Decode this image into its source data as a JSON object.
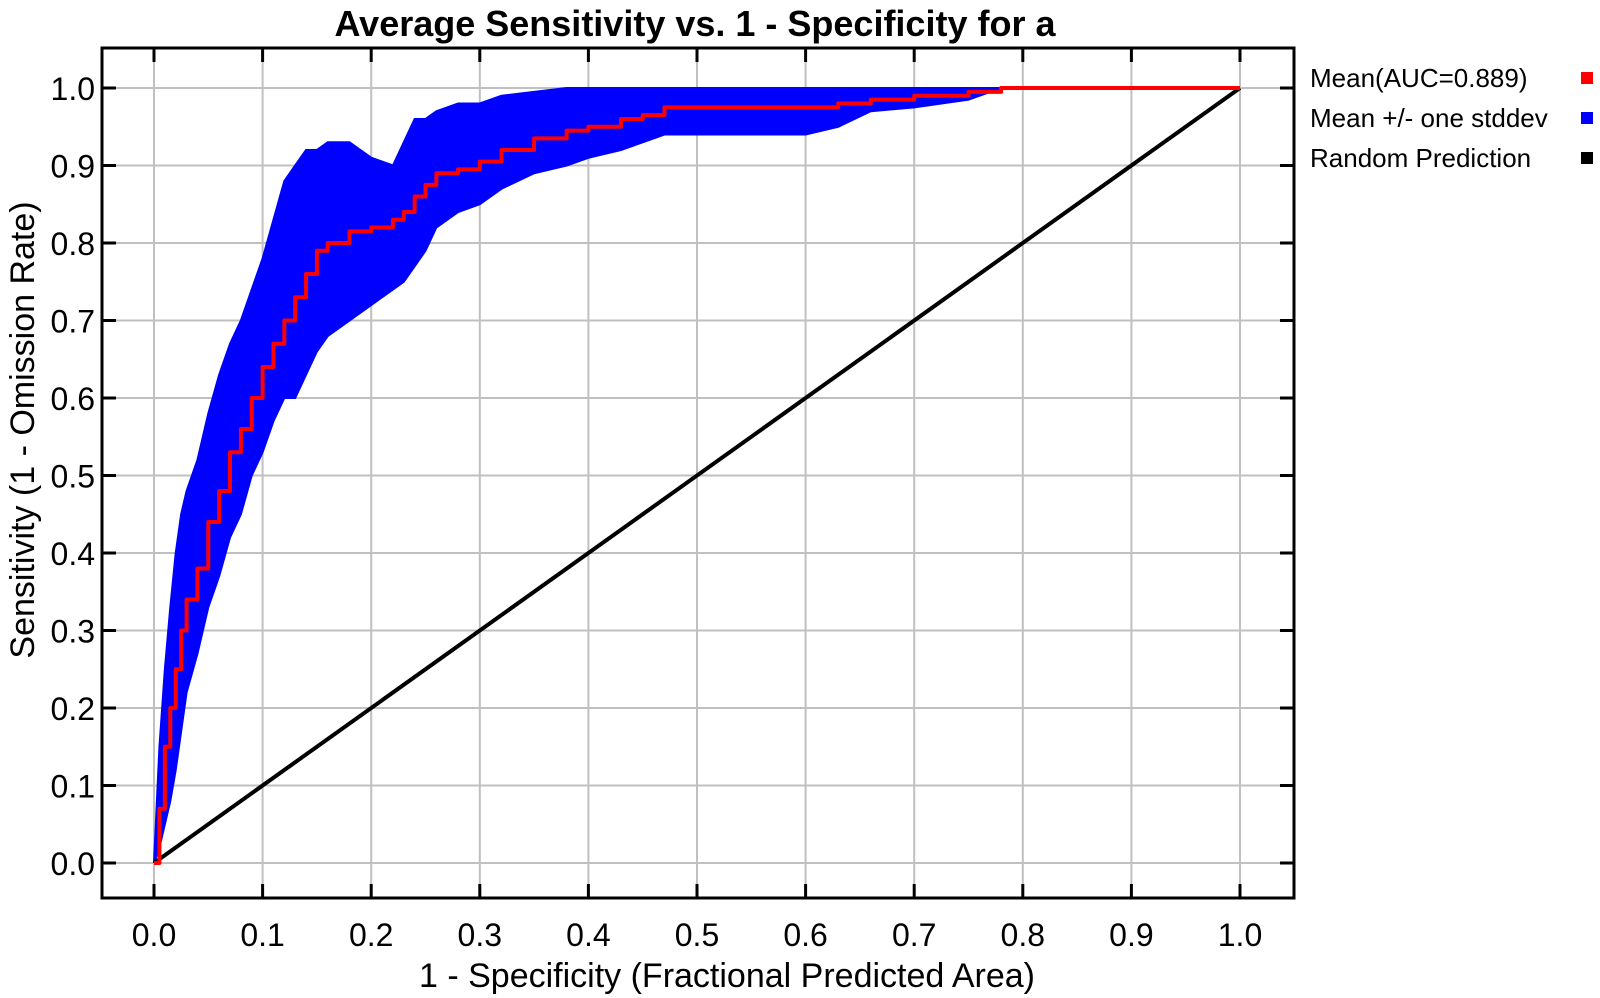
{
  "chart_data": {
    "type": "line",
    "title": "Average Sensitivity vs. 1 - Specificity for a",
    "xlabel": "1 - Specificity (Fractional Predicted Area)",
    "ylabel": "Sensitivity (1 - Omission Rate)",
    "xlim": [
      0.0,
      1.0
    ],
    "ylim": [
      0.0,
      1.0
    ],
    "xticks": [
      "0.0",
      "0.1",
      "0.2",
      "0.3",
      "0.4",
      "0.5",
      "0.6",
      "0.7",
      "0.8",
      "0.9",
      "1.0"
    ],
    "yticks": [
      "0.0",
      "0.1",
      "0.2",
      "0.3",
      "0.4",
      "0.5",
      "0.6",
      "0.7",
      "0.8",
      "0.9",
      "1.0"
    ],
    "grid": true,
    "legend_position": "right",
    "series": [
      {
        "name": "Mean(AUC=0.889)",
        "color": "#ff0000",
        "x": [
          0.0,
          0.005,
          0.01,
          0.015,
          0.02,
          0.025,
          0.03,
          0.04,
          0.05,
          0.06,
          0.07,
          0.08,
          0.09,
          0.1,
          0.11,
          0.12,
          0.13,
          0.14,
          0.15,
          0.16,
          0.18,
          0.2,
          0.22,
          0.23,
          0.24,
          0.25,
          0.26,
          0.28,
          0.3,
          0.32,
          0.35,
          0.38,
          0.4,
          0.43,
          0.45,
          0.47,
          0.5,
          0.55,
          0.6,
          0.63,
          0.66,
          0.7,
          0.75,
          0.78,
          0.8,
          0.9,
          1.0
        ],
        "y": [
          0.0,
          0.07,
          0.15,
          0.2,
          0.25,
          0.3,
          0.34,
          0.38,
          0.44,
          0.48,
          0.53,
          0.56,
          0.6,
          0.64,
          0.67,
          0.7,
          0.73,
          0.76,
          0.79,
          0.8,
          0.815,
          0.82,
          0.83,
          0.84,
          0.86,
          0.875,
          0.89,
          0.895,
          0.905,
          0.92,
          0.935,
          0.945,
          0.95,
          0.96,
          0.965,
          0.975,
          0.975,
          0.975,
          0.975,
          0.98,
          0.985,
          0.99,
          0.995,
          1.0,
          1.0,
          1.0,
          1.0
        ]
      },
      {
        "name": "Mean +/- one stddev",
        "color": "#0000ff",
        "x": [
          0.0,
          0.005,
          0.01,
          0.015,
          0.02,
          0.025,
          0.03,
          0.04,
          0.05,
          0.06,
          0.07,
          0.08,
          0.09,
          0.1,
          0.11,
          0.12,
          0.13,
          0.14,
          0.15,
          0.16,
          0.18,
          0.2,
          0.22,
          0.23,
          0.24,
          0.25,
          0.26,
          0.28,
          0.3,
          0.32,
          0.35,
          0.38,
          0.4,
          0.43,
          0.45,
          0.47,
          0.5,
          0.55,
          0.6,
          0.63,
          0.66,
          0.7,
          0.75,
          0.78,
          0.8,
          0.9,
          1.0
        ],
        "upper": [
          0.0,
          0.15,
          0.25,
          0.33,
          0.4,
          0.45,
          0.48,
          0.52,
          0.58,
          0.63,
          0.67,
          0.7,
          0.74,
          0.78,
          0.83,
          0.88,
          0.9,
          0.92,
          0.92,
          0.93,
          0.93,
          0.91,
          0.9,
          0.93,
          0.96,
          0.96,
          0.97,
          0.98,
          0.98,
          0.99,
          0.995,
          1.0,
          1.0,
          1.0,
          1.0,
          1.0,
          1.0,
          1.0,
          1.0,
          1.0,
          1.0,
          1.0,
          1.0,
          1.0,
          1.0,
          1.0,
          1.0
        ],
        "lower": [
          0.0,
          0.02,
          0.05,
          0.08,
          0.12,
          0.17,
          0.22,
          0.27,
          0.33,
          0.37,
          0.42,
          0.45,
          0.5,
          0.53,
          0.57,
          0.6,
          0.6,
          0.63,
          0.66,
          0.68,
          0.7,
          0.72,
          0.74,
          0.75,
          0.77,
          0.79,
          0.82,
          0.84,
          0.85,
          0.87,
          0.89,
          0.9,
          0.91,
          0.92,
          0.93,
          0.94,
          0.94,
          0.94,
          0.94,
          0.95,
          0.97,
          0.975,
          0.985,
          1.0,
          1.0,
          1.0,
          1.0
        ]
      },
      {
        "name": "Random Prediction",
        "color": "#000000",
        "x": [
          0.0,
          1.0
        ],
        "y": [
          0.0,
          1.0
        ]
      }
    ]
  }
}
